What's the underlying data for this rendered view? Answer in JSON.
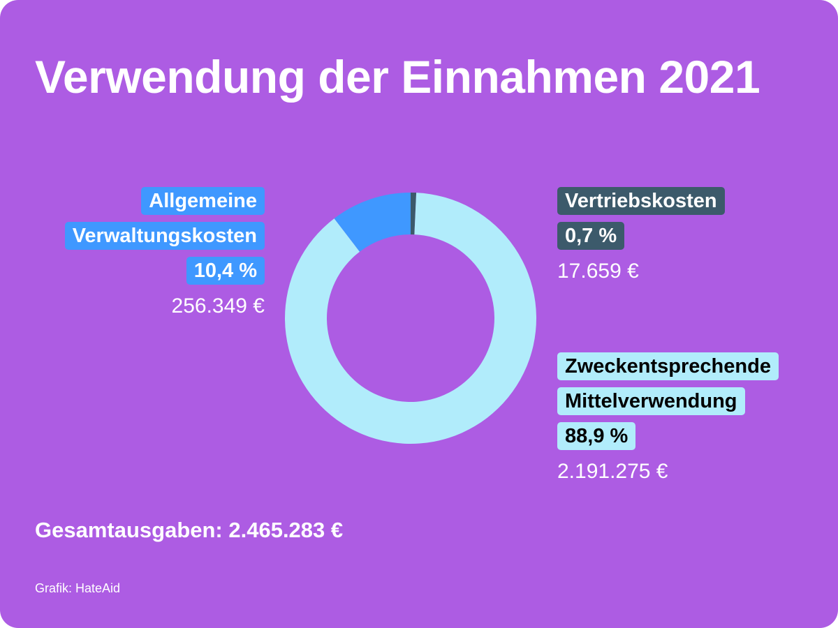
{
  "title": "Verwendung der Einnahmen 2021",
  "total": "Gesamtausgaben: 2.465.283 €",
  "source": "Grafik: HateAid",
  "colors": {
    "background": "#ad5ce3",
    "Vertriebskosten": "#3c5a6b",
    "Allgemeine Verwaltungskosten": "#3f98ff",
    "Zweckentsprechende Mittelverwendung": "#b1ecfb"
  },
  "labels": {
    "verwaltung": {
      "line1": "Allgemeine",
      "line2": "Verwaltungskosten",
      "percent": "10,4 %",
      "amount": "256.349 €"
    },
    "vertrieb": {
      "line1": "Vertriebskosten",
      "percent": "0,7 %",
      "amount": "17.659 €"
    },
    "zweck": {
      "line1": "Zweckentsprechende",
      "line2": "Mittelverwendung",
      "percent": "88,9 %",
      "amount": "2.191.275 €"
    }
  },
  "chart_data": {
    "type": "pie",
    "title": "Verwendung der Einnahmen 2021",
    "donut": true,
    "start": "top",
    "direction": "clockwise",
    "slices": [
      {
        "name": "Vertriebskosten",
        "percent": 0.7,
        "value": 17659,
        "color": "#3c5a6b"
      },
      {
        "name": "Zweckentsprechende Mittelverwendung",
        "percent": 88.9,
        "value": 2191275,
        "color": "#b1ecfb"
      },
      {
        "name": "Allgemeine Verwaltungskosten",
        "percent": 10.4,
        "value": 256349,
        "color": "#3f98ff"
      }
    ],
    "total": 2465283
  }
}
